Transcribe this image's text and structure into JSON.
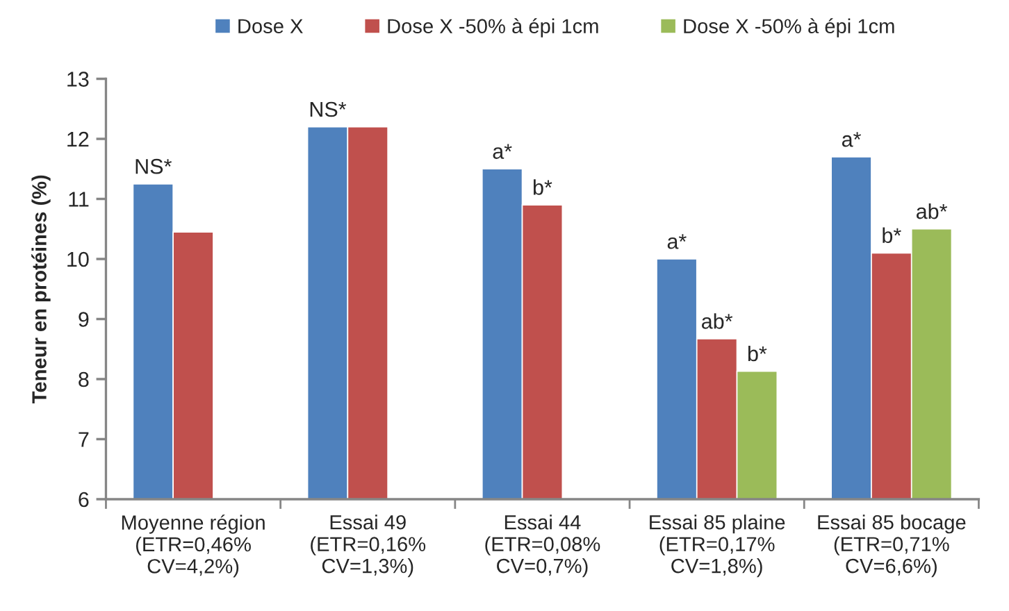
{
  "chart_data": {
    "type": "bar",
    "ylabel": "Teneur en protéines (%)",
    "categories": [
      "Moyenne région\n(ETR=0,46%\nCV=4,2%)",
      "Essai 49\n(ETR=0,16%\nCV=1,3%)",
      "Essai 44\n(ETR=0,08%\nCV=0,7%)",
      "Essai 85 plaine\n(ETR=0,17%\nCV=1,8%)",
      "Essai 85 bocage\n(ETR=0,71%\nCV=6,6%)"
    ],
    "series": [
      {
        "name": "Dose X",
        "color": "#4f81bd",
        "values": [
          11.25,
          12.2,
          11.5,
          10.0,
          11.7
        ],
        "value_labels": [
          "NS*",
          "NS*",
          "a*",
          "a*",
          "a*"
        ]
      },
      {
        "name": "Dose X -50% à épi 1cm",
        "color": "#c0504d",
        "values": [
          10.45,
          12.2,
          10.9,
          8.67,
          10.1
        ],
        "value_labels": [
          null,
          null,
          "b*",
          "ab*",
          "b*"
        ]
      },
      {
        "name": "Dose X -50% à épi 1cm",
        "color": "#9bbb59",
        "values": [
          null,
          null,
          null,
          8.13,
          10.5
        ],
        "value_labels": [
          null,
          null,
          null,
          "b*",
          "ab*"
        ]
      }
    ],
    "ylim": [
      6,
      13
    ],
    "yticks": [
      6,
      7,
      8,
      9,
      10,
      11,
      12,
      13
    ],
    "grid": false,
    "legend": "top"
  }
}
